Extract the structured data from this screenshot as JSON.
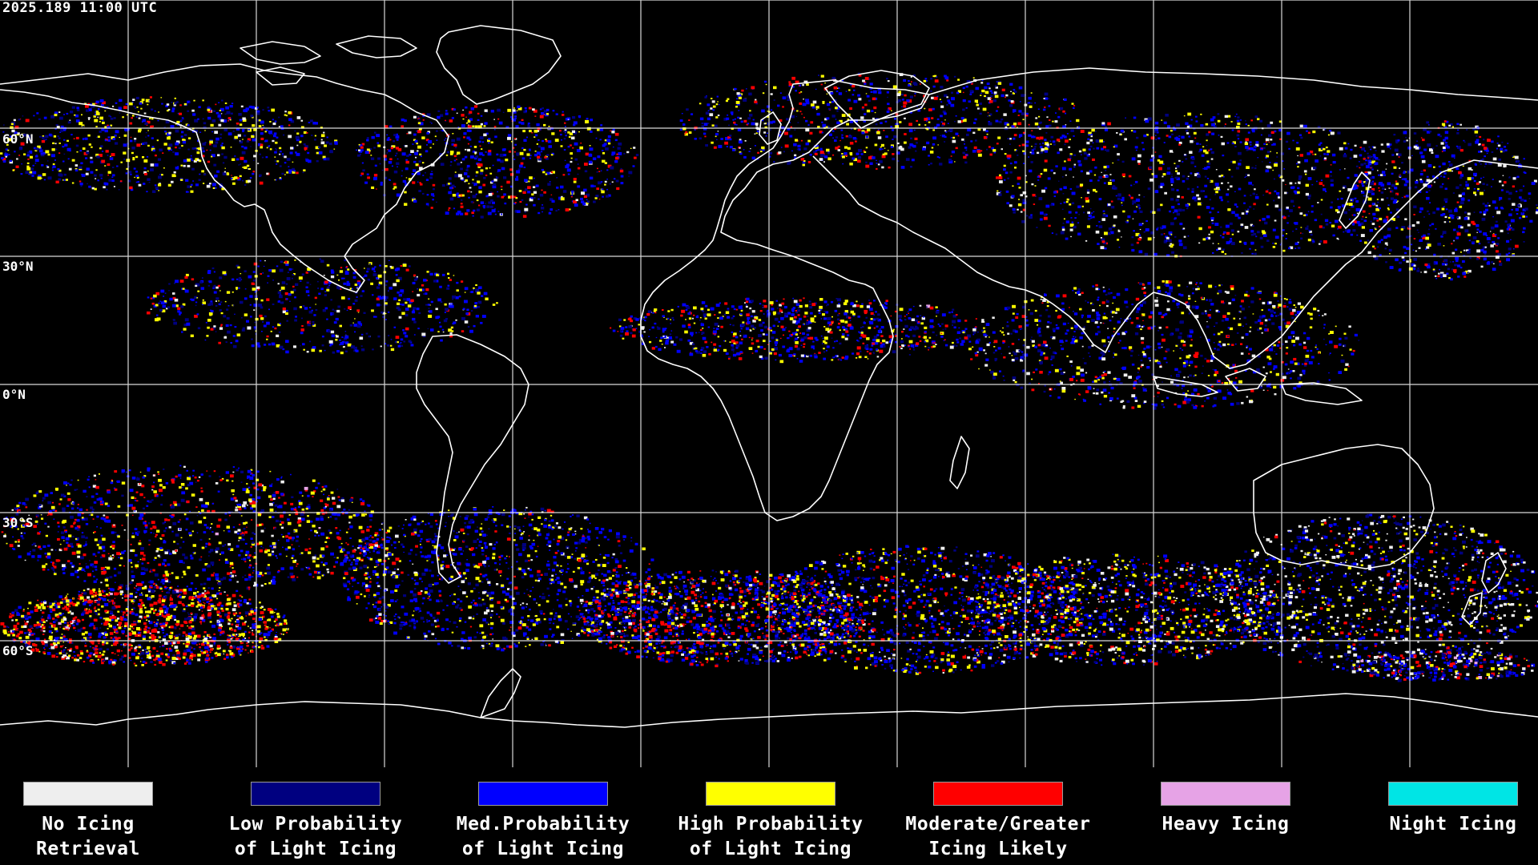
{
  "header": {
    "timestamp": "2025.189 11:00 UTC"
  },
  "map": {
    "latitude_labels": [
      "60°N",
      "30°N",
      "0°N",
      "30°S",
      "60°S"
    ],
    "grid_color": "#ffffff",
    "coastline_color": "#ffffff",
    "background_color": "#000000"
  },
  "legend": {
    "items": [
      {
        "label": "No Icing\nRetrieval",
        "color": "#eeeeee"
      },
      {
        "label": "Low Probability\nof Light Icing",
        "color": "#000080"
      },
      {
        "label": "Med.Probability\nof Light Icing",
        "color": "#0000ff"
      },
      {
        "label": "High Probability\nof Light Icing",
        "color": "#ffff00"
      },
      {
        "label": "Moderate/Greater\nIcing Likely",
        "color": "#ff0000"
      },
      {
        "label": "Heavy Icing",
        "color": "#e6a3e6"
      },
      {
        "label": "Night Icing",
        "color": "#00e5e5"
      }
    ]
  }
}
